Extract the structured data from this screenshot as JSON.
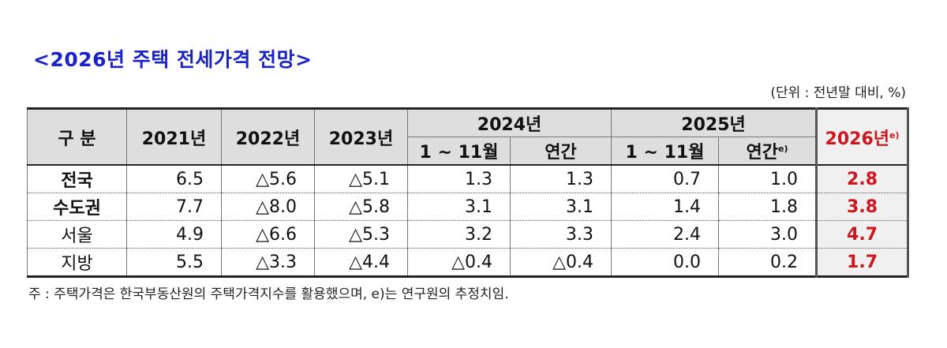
{
  "title": "<2026년 주택 전세가격 전망>",
  "unit": "(단위 : 전년말 대비, %)",
  "table": {
    "header": {
      "category": "구 분",
      "y2021": "2021년",
      "y2022": "2022년",
      "y2023": "2023년",
      "y2024": "2024년",
      "y2025": "2025년",
      "y2026": "2026년",
      "y2026_sup": "e)",
      "jan_nov_2024": "1 ~ 11월",
      "annual_2024": "연간",
      "jan_nov_2025": "1 ~ 11월",
      "annual_2025": "연간",
      "annual_2025_sup": "e)"
    },
    "rows": [
      {
        "label": "전국",
        "v2021": "6.5",
        "v2022": "△5.6",
        "v2023": "△5.1",
        "v2024_janNov": "1.3",
        "v2024_annual": "1.3",
        "v2025_janNov": "0.7",
        "v2025_annual": "1.0",
        "v2026": "2.8"
      },
      {
        "label": "수도권",
        "v2021": "7.7",
        "v2022": "△8.0",
        "v2023": "△5.8",
        "v2024_janNov": "3.1",
        "v2024_annual": "3.1",
        "v2025_janNov": "1.4",
        "v2025_annual": "1.8",
        "v2026": "3.8"
      },
      {
        "label": "서울",
        "v2021": "4.9",
        "v2022": "△6.6",
        "v2023": "△5.3",
        "v2024_janNov": "3.2",
        "v2024_annual": "3.3",
        "v2025_janNov": "2.4",
        "v2025_annual": "3.0",
        "v2026": "4.7"
      },
      {
        "label": "지방",
        "v2021": "5.5",
        "v2022": "△3.3",
        "v2023": "△4.4",
        "v2024_janNov": "△0.4",
        "v2024_annual": "△0.4",
        "v2025_janNov": "0.0",
        "v2025_annual": "0.2",
        "v2026": "1.7"
      }
    ]
  },
  "note": "주 : 주택가격은 한국부동산원의 주택가격지수를 활용했으며, e)는 연구원의 추정치임.",
  "colors": {
    "title": "#1a23c8",
    "highlight": "#d0161c",
    "header_bg": "#dedede"
  }
}
